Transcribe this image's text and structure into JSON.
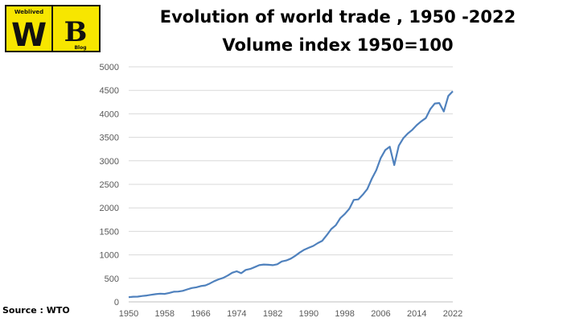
{
  "logo": {
    "top_text": "Weblived",
    "letters": "WB",
    "side_text": "Blog",
    "colors": {
      "yellow": "#f7e600",
      "dark": "#111111"
    }
  },
  "title_line1": "Evolution of world trade , 1950 -2022",
  "title_line2": "Volume index 1950=100",
  "source": "Source : WTO",
  "chart_data": {
    "type": "line",
    "title": "Evolution of world trade , 1950 -2022",
    "subtitle": "Volume index 1950=100",
    "xlabel": "",
    "ylabel": "",
    "xlim": [
      1950,
      2022
    ],
    "ylim": [
      0,
      5000
    ],
    "x_ticks": [
      1950,
      1958,
      1966,
      1974,
      1982,
      1990,
      1998,
      2006,
      2014,
      2022
    ],
    "y_ticks": [
      0,
      500,
      1000,
      1500,
      2000,
      2500,
      3000,
      3500,
      4000,
      4500,
      5000
    ],
    "grid": true,
    "legend": "none",
    "color": "#4f81bd",
    "series": [
      {
        "x": [
          1950,
          1951,
          1952,
          1953,
          1954,
          1955,
          1956,
          1957,
          1958,
          1959,
          1960,
          1961,
          1962,
          1963,
          1964,
          1965,
          1966,
          1967,
          1968,
          1969,
          1970,
          1971,
          1972,
          1973,
          1974,
          1975,
          1976,
          1977,
          1978,
          1979,
          1980,
          1981,
          1982,
          1983,
          1984,
          1985,
          1986,
          1987,
          1988,
          1989,
          1990,
          1991,
          1992,
          1993,
          1994,
          1995,
          1996,
          1997,
          1998,
          1999,
          2000,
          2001,
          2002,
          2003,
          2004,
          2005,
          2006,
          2007,
          2008,
          2009,
          2010,
          2011,
          2012,
          2013,
          2014,
          2015,
          2016,
          2017,
          2018,
          2019,
          2020,
          2021,
          2022
        ],
        "values": [
          100,
          110,
          112,
          125,
          135,
          150,
          165,
          175,
          170,
          190,
          215,
          220,
          235,
          265,
          295,
          310,
          335,
          350,
          390,
          440,
          480,
          510,
          560,
          620,
          650,
          610,
          680,
          700,
          740,
          780,
          795,
          790,
          780,
          800,
          860,
          880,
          920,
          980,
          1050,
          1110,
          1150,
          1190,
          1250,
          1300,
          1420,
          1550,
          1630,
          1780,
          1870,
          1980,
          2170,
          2180,
          2280,
          2400,
          2620,
          2800,
          3060,
          3230,
          3300,
          2910,
          3320,
          3480,
          3580,
          3660,
          3760,
          3840,
          3910,
          4100,
          4220,
          4230,
          4050,
          4380,
          4480
        ]
      }
    ]
  }
}
